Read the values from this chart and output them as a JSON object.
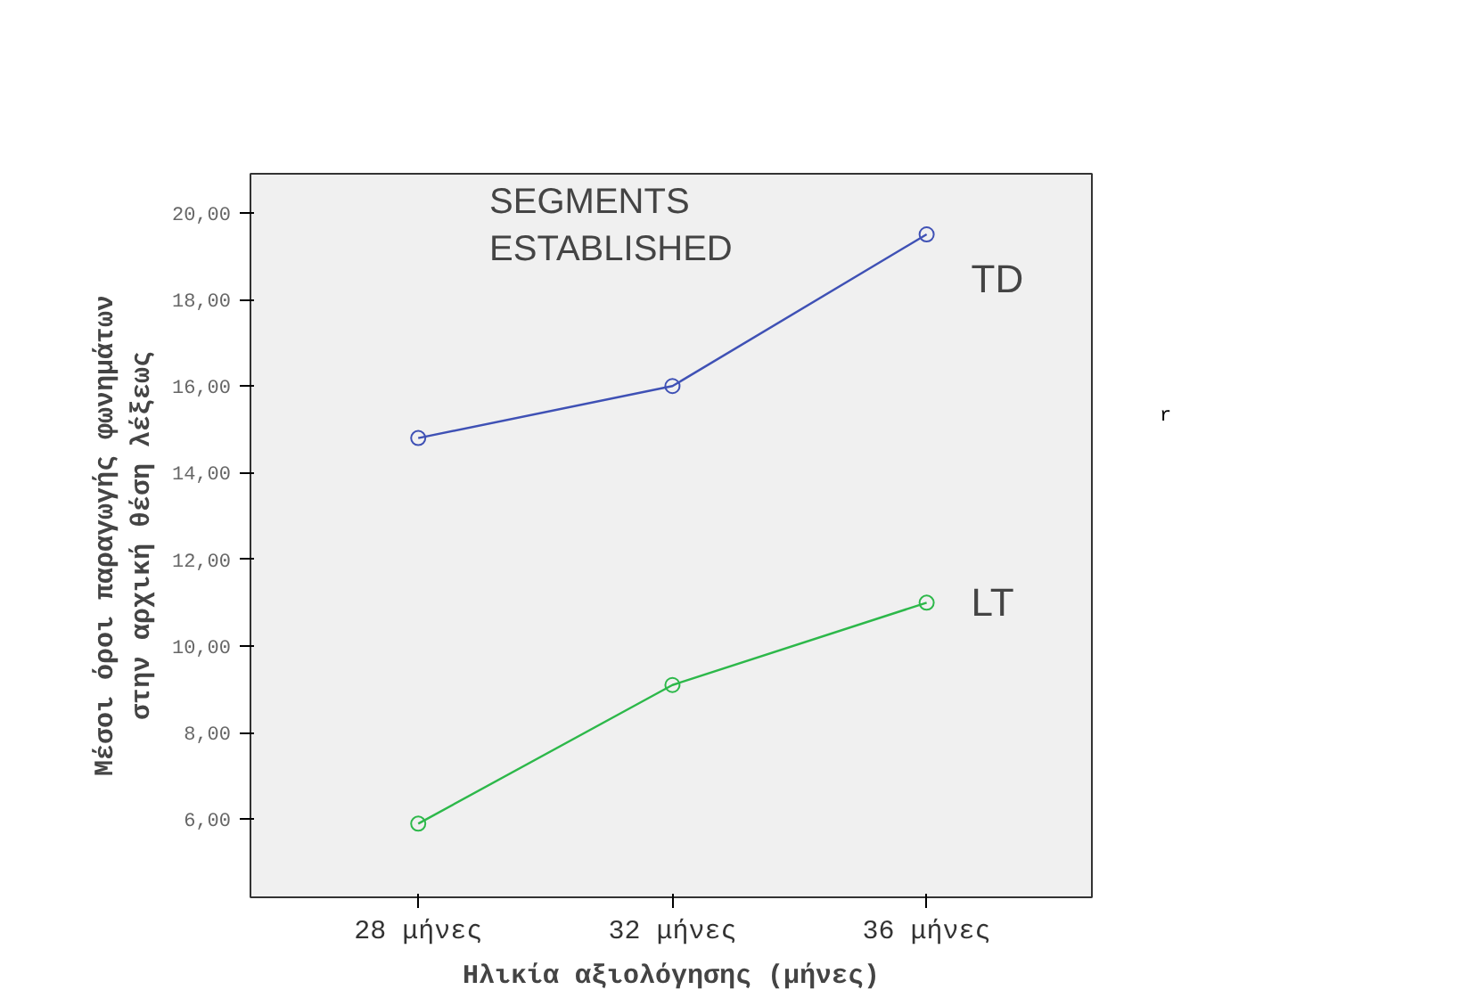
{
  "chart_data": {
    "type": "line",
    "xlabel": "Ηλικία αξιολόγησης (μήνες)",
    "ylabel": "Μέσοι όροι παραγωγής φωνημάτων\nστην αρχική θέση λέξεως",
    "categories": [
      "28 μήνες",
      "32 μήνες",
      "36 μήνες"
    ],
    "series": [
      {
        "name": "TD",
        "color": "#3f51b5",
        "values": [
          14.8,
          16.0,
          19.5
        ]
      },
      {
        "name": "LT",
        "color": "#2db84a",
        "values": [
          5.9,
          9.1,
          11.0
        ]
      }
    ],
    "ylim": [
      4.2,
      20.9
    ],
    "yticks": [
      {
        "value": 6,
        "label": "6,00"
      },
      {
        "value": 8,
        "label": "8,00"
      },
      {
        "value": 10,
        "label": "10,00"
      },
      {
        "value": 12,
        "label": "12,00"
      },
      {
        "value": 14,
        "label": "14,00"
      },
      {
        "value": 16,
        "label": "16,00"
      },
      {
        "value": 18,
        "label": "18,00"
      },
      {
        "value": 20,
        "label": "20,00"
      }
    ],
    "annotations": [
      "SEGMENTS\nESTABLISHED",
      "r"
    ],
    "marker": "circle",
    "grid": false
  }
}
